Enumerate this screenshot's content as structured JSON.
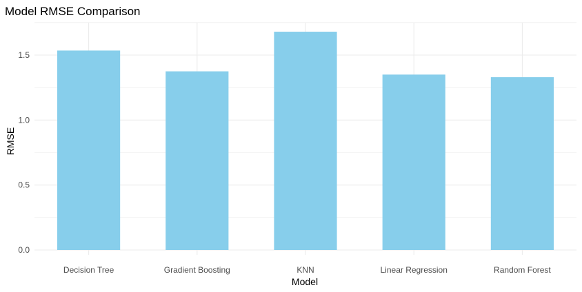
{
  "chart_data": {
    "type": "bar",
    "title": "Model RMSE Comparison",
    "xlabel": "Model",
    "ylabel": "RMSE",
    "categories": [
      "Decision Tree",
      "Gradient Boosting",
      "KNN",
      "Linear Regression",
      "Random Forest"
    ],
    "values": [
      1.535,
      1.375,
      1.68,
      1.35,
      1.33
    ],
    "ylim": [
      0,
      1.75
    ],
    "yticks": [
      0.0,
      0.5,
      1.0,
      1.5
    ],
    "ytick_labels": [
      "0.0",
      "0.5",
      "1.0",
      "1.5"
    ],
    "grid": true,
    "legend": "none",
    "colors": {
      "bar": "#87CEEB",
      "grid": "#ebebeb",
      "background": "#ffffff"
    }
  }
}
